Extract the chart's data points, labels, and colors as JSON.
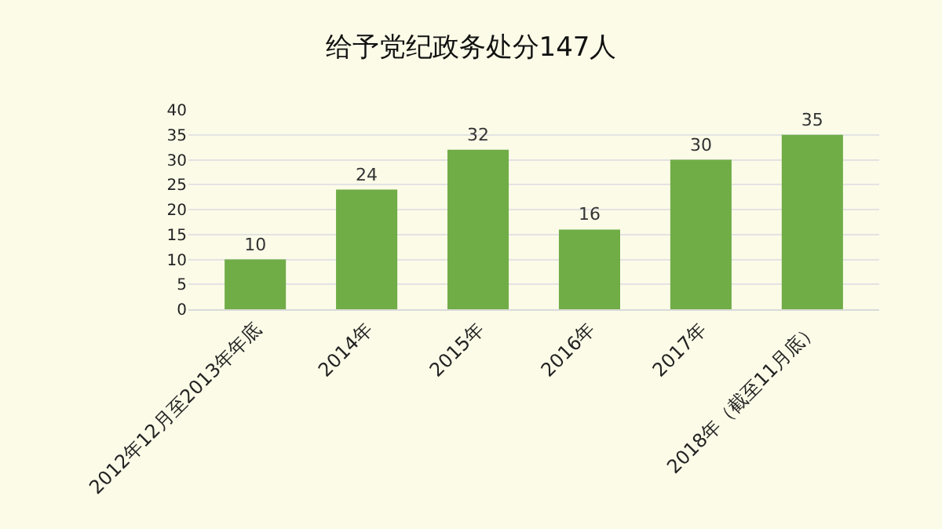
{
  "chart_data": {
    "type": "bar",
    "title": "给予党纪政务处分147人",
    "categories": [
      "2012年12月至2013年年底",
      "2014年",
      "2015年",
      "2016年",
      "2017年",
      "2018年（截至11月底）"
    ],
    "values": [
      10,
      24,
      32,
      16,
      30,
      35
    ],
    "color": "#70ad47",
    "ylim": [
      0,
      40
    ],
    "yticks": [
      0,
      5,
      10,
      15,
      20,
      25,
      30,
      35,
      40
    ],
    "grid": "y",
    "data_labels": true,
    "legend": false
  }
}
